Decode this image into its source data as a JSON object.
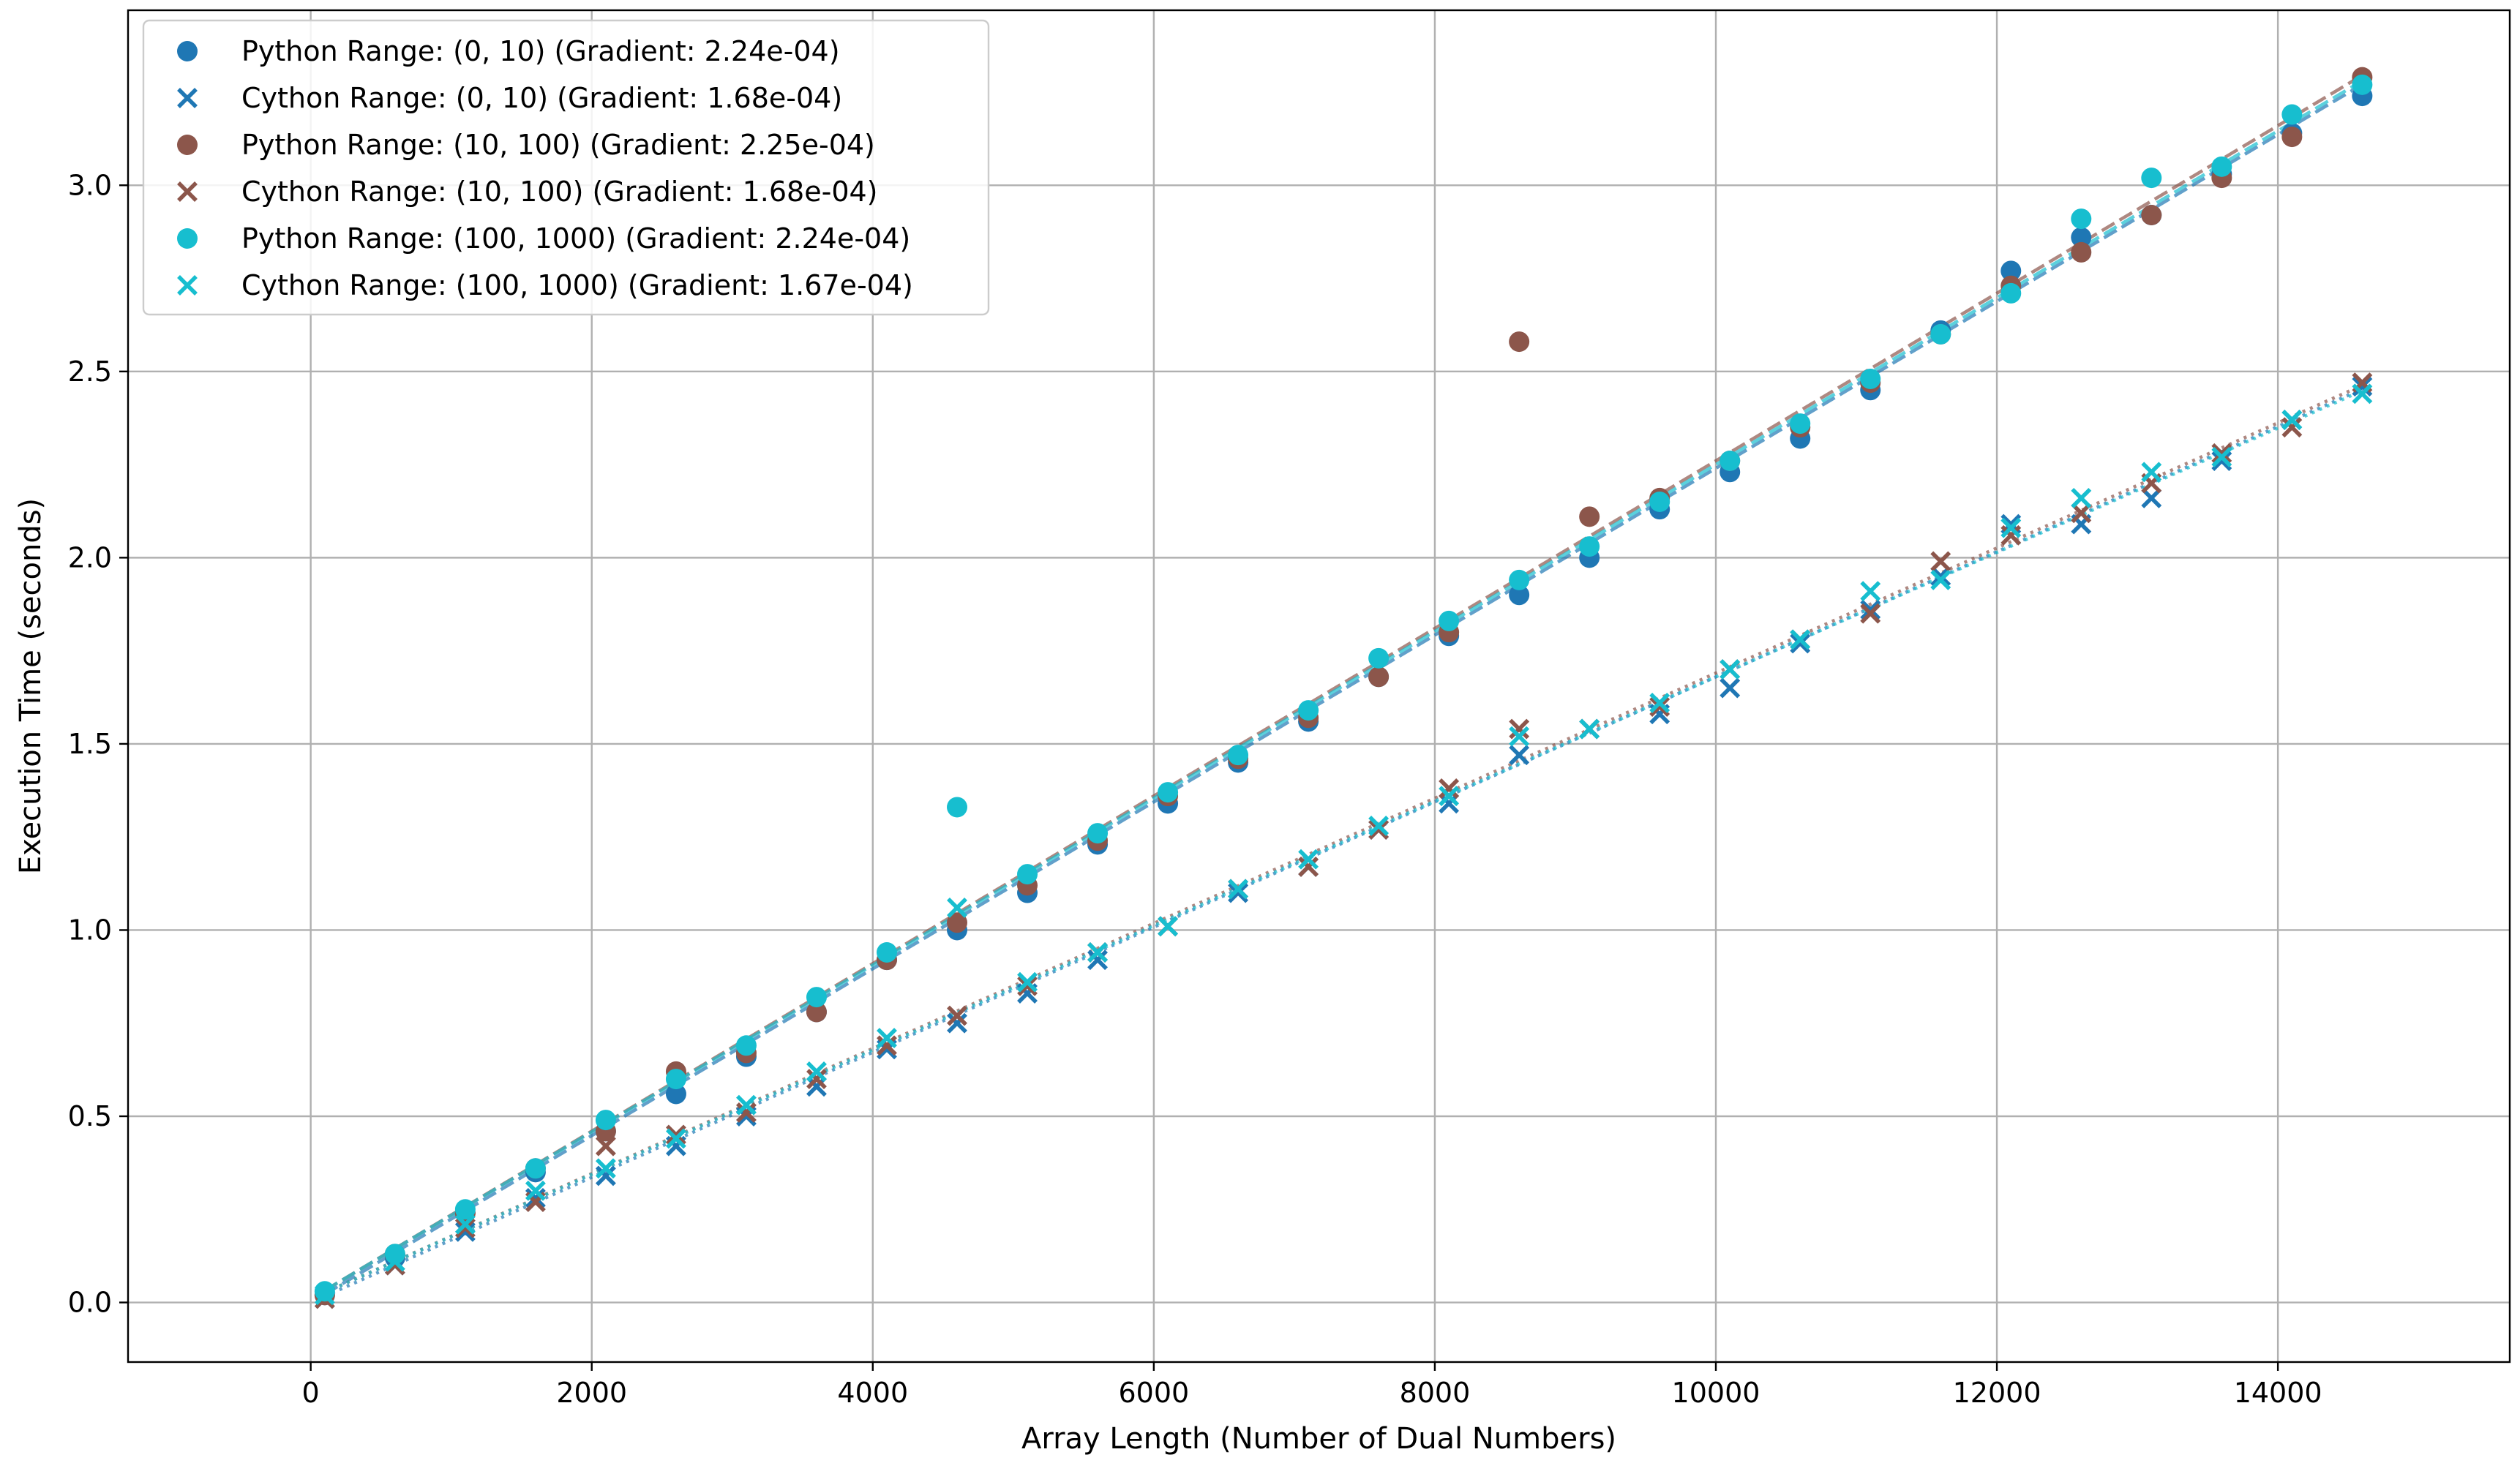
{
  "chart_data": {
    "type": "scatter",
    "xlabel": "Array Length (Number of Dual Numbers)",
    "ylabel": "Execution Time (seconds)",
    "xlim": [
      -1300,
      15650
    ],
    "ylim": [
      -0.16,
      3.47
    ],
    "xticks": [
      0,
      2000,
      4000,
      6000,
      8000,
      10000,
      12000,
      14000
    ],
    "yticks": [
      0.0,
      0.5,
      1.0,
      1.5,
      2.0,
      2.5,
      3.0
    ],
    "xtick_labels": [
      "0",
      "2000",
      "4000",
      "6000",
      "8000",
      "10000",
      "12000",
      "14000"
    ],
    "ytick_labels": [
      "0.0",
      "0.5",
      "1.0",
      "1.5",
      "2.0",
      "2.5",
      "3.0"
    ],
    "grid": true,
    "legend_position": "top-left",
    "x": [
      100,
      600,
      1100,
      1600,
      2100,
      2600,
      3100,
      3600,
      4100,
      4600,
      5100,
      5600,
      6100,
      6600,
      7100,
      7600,
      8100,
      8600,
      9100,
      9600,
      10100,
      10600,
      11100,
      11600,
      12100,
      12600,
      13100,
      13600,
      14100,
      14600
    ],
    "series": [
      {
        "name": "Python Range: (0, 10) (Gradient: 2.24e-04)",
        "marker": "circle",
        "color": "#1f77b4",
        "fit": {
          "slope": 0.000224,
          "intercept": 0.0,
          "style": "dashed"
        },
        "values": [
          0.02,
          0.12,
          0.24,
          0.35,
          0.46,
          0.56,
          0.66,
          0.78,
          0.92,
          1.0,
          1.1,
          1.23,
          1.34,
          1.45,
          1.56,
          1.68,
          1.79,
          1.9,
          2.0,
          2.13,
          2.23,
          2.32,
          2.45,
          2.61,
          2.77,
          2.86,
          2.92,
          3.03,
          3.14,
          3.24
        ]
      },
      {
        "name": "Cython Range: (0, 10) (Gradient: 1.68e-04)",
        "marker": "x",
        "color": "#1f77b4",
        "fit": {
          "slope": 0.000168,
          "intercept": 0.0,
          "style": "dotted"
        },
        "values": [
          0.01,
          0.1,
          0.19,
          0.28,
          0.34,
          0.42,
          0.5,
          0.58,
          0.68,
          0.75,
          0.83,
          0.92,
          1.01,
          1.1,
          1.17,
          1.27,
          1.34,
          1.47,
          1.54,
          1.58,
          1.65,
          1.77,
          1.86,
          1.95,
          2.09,
          2.09,
          2.16,
          2.26,
          2.37,
          2.46
        ]
      },
      {
        "name": "Python Range: (10, 100) (Gradient: 2.25e-04)",
        "marker": "circle",
        "color": "#8c564b",
        "fit": {
          "slope": 0.000225,
          "intercept": 0.01,
          "style": "dashed"
        },
        "values": [
          0.02,
          0.13,
          0.24,
          0.36,
          0.46,
          0.62,
          0.67,
          0.78,
          0.92,
          1.02,
          1.12,
          1.24,
          1.36,
          1.46,
          1.57,
          1.68,
          1.8,
          2.58,
          2.11,
          2.16,
          2.26,
          2.35,
          2.47,
          2.6,
          2.73,
          2.82,
          2.92,
          3.02,
          3.13,
          3.29
        ]
      },
      {
        "name": "Cython Range: (10, 100) (Gradient: 1.68e-04)",
        "marker": "x",
        "color": "#8c564b",
        "fit": {
          "slope": 0.000168,
          "intercept": 0.01,
          "style": "dotted"
        },
        "values": [
          0.01,
          0.1,
          0.2,
          0.27,
          0.42,
          0.45,
          0.51,
          0.6,
          0.69,
          0.77,
          0.85,
          0.94,
          1.01,
          1.11,
          1.17,
          1.27,
          1.38,
          1.54,
          1.54,
          1.6,
          1.7,
          1.78,
          1.85,
          1.99,
          2.06,
          2.12,
          2.2,
          2.28,
          2.35,
          2.47
        ]
      },
      {
        "name": "Python Range: (100, 1000) (Gradient: 2.24e-04)",
        "marker": "circle",
        "color": "#17becf",
        "fit": {
          "slope": 0.000224,
          "intercept": 0.01,
          "style": "dashed"
        },
        "values": [
          0.03,
          0.13,
          0.25,
          0.36,
          0.49,
          0.6,
          0.69,
          0.82,
          0.94,
          1.33,
          1.15,
          1.26,
          1.37,
          1.47,
          1.59,
          1.73,
          1.83,
          1.94,
          2.03,
          2.15,
          2.26,
          2.36,
          2.48,
          2.6,
          2.71,
          2.91,
          3.02,
          3.05,
          3.19,
          3.27
        ]
      },
      {
        "name": "Cython Range: (100, 1000) (Gradient: 1.67e-04)",
        "marker": "x",
        "color": "#17becf",
        "fit": {
          "slope": 0.000167,
          "intercept": 0.01,
          "style": "dotted"
        },
        "values": [
          0.02,
          0.11,
          0.21,
          0.3,
          0.36,
          0.44,
          0.53,
          0.62,
          0.71,
          1.06,
          0.86,
          0.94,
          1.01,
          1.11,
          1.19,
          1.28,
          1.36,
          1.52,
          1.54,
          1.61,
          1.7,
          1.78,
          1.91,
          1.94,
          2.08,
          2.16,
          2.23,
          2.27,
          2.37,
          2.44
        ]
      }
    ]
  }
}
